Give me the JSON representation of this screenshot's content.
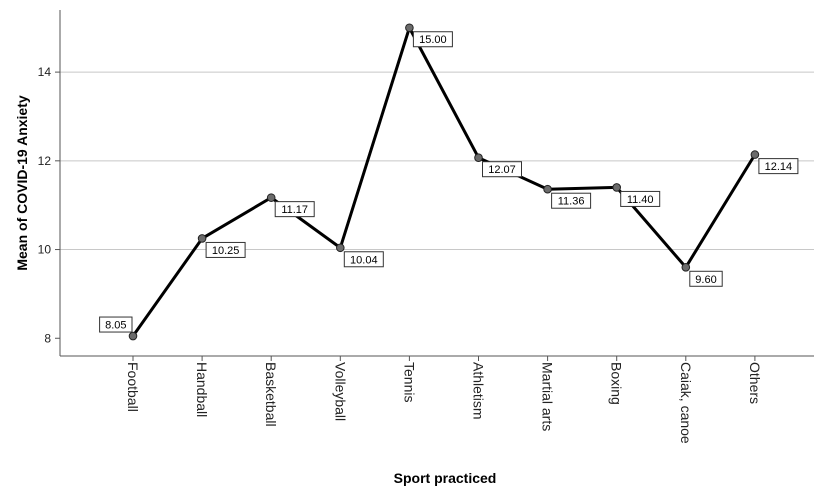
{
  "chart_data": {
    "type": "line",
    "title": "",
    "xlabel": "Sport practiced",
    "ylabel": "Mean of COVID-19 Anxiety",
    "categories": [
      "Football",
      "Handball",
      "Basketball",
      "Volleyball",
      "Tennis",
      "Athletism",
      "Martial arts",
      "Boxing",
      "Caiak, canoe",
      "Others"
    ],
    "values": [
      8.05,
      10.25,
      11.17,
      10.04,
      15.0,
      12.07,
      11.36,
      11.4,
      9.6,
      12.14
    ],
    "data_labels": [
      "8.05",
      "10.25",
      "11.17",
      "10.04",
      "15.00",
      "12.07",
      "11.36",
      "11.40",
      "9.60",
      "12.14"
    ],
    "yticks": [
      8,
      10,
      12,
      14
    ],
    "ytick_labels": [
      "8",
      "10",
      "12",
      "14"
    ],
    "ylim": [
      7.6,
      15.4
    ],
    "grid": true,
    "line_color": "#000000",
    "marker_color": "#6b6b6b",
    "grid_color": "#c8c8c8"
  }
}
